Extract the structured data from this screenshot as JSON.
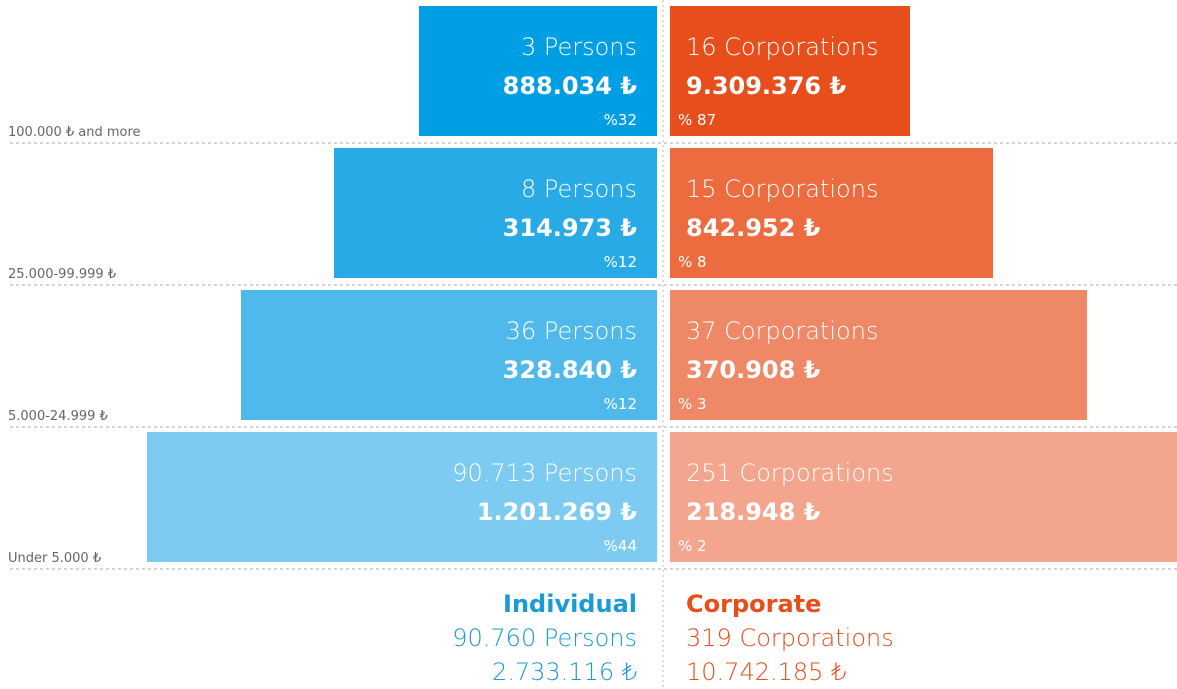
{
  "rows": [
    {
      "label": "100.000 ₺ and more",
      "individual": {
        "count": "3 Persons",
        "amount": "888.034 ₺",
        "share": "%32"
      },
      "corporate": {
        "count": "16 Corporations",
        "amount": "9.309.376  ₺",
        "share": "% 87"
      }
    },
    {
      "label": "25.000-99.999 ₺",
      "individual": {
        "count": "8 Persons",
        "amount": "314.973 ₺",
        "share": "%12"
      },
      "corporate": {
        "count": "15 Corporations",
        "amount": "842.952  ₺",
        "share": "% 8"
      }
    },
    {
      "label": "5.000-24.999 ₺",
      "individual": {
        "count": "36 Persons",
        "amount": "328.840 ₺",
        "share": "%12"
      },
      "corporate": {
        "count": "37 Corporations",
        "amount": "370.908  ₺",
        "share": "% 3"
      }
    },
    {
      "label": "Under 5.000 ₺",
      "individual": {
        "count": "90.713 Persons",
        "amount": "1.201.269 ₺",
        "share": "%44"
      },
      "corporate": {
        "count": "251 Corporations",
        "amount": "218.948 ₺",
        "share": "% 2"
      }
    }
  ],
  "totals": {
    "individual": {
      "title": "Individual",
      "count": "90.760 Persons",
      "amount": "2.733.116 ₺"
    },
    "corporate": {
      "title": "Corporate",
      "count": "319 Corporations",
      "amount": "10.742.185 ₺"
    }
  }
}
